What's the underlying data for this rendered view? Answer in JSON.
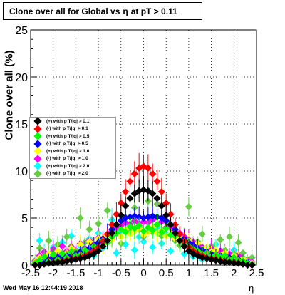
{
  "title": {
    "text": "Clone  over all for Global vs",
    "eta_symbol": "η",
    "suffix": "at pT > 0.11"
  },
  "ylabel": "Clone  over all (%)",
  "xlabel": "η",
  "timestamp": "Wed May 16 12:44:19 2018",
  "legend": [
    {
      "label": "(+) with p T/|q| > 0.1",
      "color": "#000000"
    },
    {
      "label": "(-) with p T/|q| > 0.1",
      "color": "#ff0000"
    },
    {
      "label": "(+) with p T/|q| > 0.5",
      "color": "#00ff00"
    },
    {
      "label": "(-) with p T/|q| > 0.5",
      "color": "#0000ff"
    },
    {
      "label": "(+) with p T/|q| > 1.0",
      "color": "#ffff00"
    },
    {
      "label": "(-) with p T/|q| > 1.0",
      "color": "#ff00ff"
    },
    {
      "label": "(+) with p T/|q| > 2.0",
      "color": "#00ffff"
    },
    {
      "label": "(-) with p T/|q| > 2.0",
      "color": "#66cc44"
    }
  ],
  "chart_data": {
    "type": "scatter",
    "title": "Clone  over all for Global vs η at pT > 0.11",
    "xlabel": "η",
    "ylabel": "Clone  over all (%)",
    "xlim": [
      -2.5,
      2.5
    ],
    "ylim": [
      0,
      25
    ],
    "xticks": [
      "-2.5",
      "-2",
      "-1.5",
      "-1",
      "-0.5",
      "0",
      "0.5",
      "1",
      "1.5",
      "2",
      "2.5"
    ],
    "yticks": [
      "0",
      "5",
      "10",
      "15",
      "20",
      "25"
    ],
    "grid": true,
    "legend_position": "middle-left",
    "x": [
      -2.4,
      -2.3,
      -2.2,
      -2.1,
      -2.0,
      -1.9,
      -1.8,
      -1.7,
      -1.6,
      -1.5,
      -1.4,
      -1.3,
      -1.2,
      -1.1,
      -1.0,
      -0.9,
      -0.8,
      -0.7,
      -0.6,
      -0.5,
      -0.4,
      -0.3,
      -0.2,
      -0.1,
      0.0,
      0.1,
      0.2,
      0.3,
      0.4,
      0.5,
      0.6,
      0.7,
      0.8,
      0.9,
      1.0,
      1.1,
      1.2,
      1.3,
      1.4,
      1.5,
      1.6,
      1.7,
      1.8,
      1.9,
      2.0,
      2.1,
      2.2,
      2.3,
      2.4
    ],
    "series": [
      {
        "name": "(+) with p T/|q| > 0.1",
        "color": "#000000",
        "values": [
          0,
          0,
          0.1,
          0.2,
          0.2,
          0.3,
          0.3,
          0.4,
          0.5,
          0.6,
          0.7,
          0.8,
          1.0,
          1.2,
          1.5,
          2.0,
          2.6,
          3.4,
          4.3,
          5.3,
          6.3,
          7.1,
          7.6,
          7.9,
          8.0,
          7.9,
          7.6,
          7.1,
          6.3,
          5.3,
          4.3,
          3.4,
          2.6,
          2.0,
          1.5,
          1.2,
          1.0,
          0.8,
          0.7,
          0.6,
          0.5,
          0.4,
          0.3,
          0.3,
          0.2,
          0.2,
          0.1,
          0,
          0
        ]
      },
      {
        "name": "(-) with p T/|q| > 0.1",
        "color": "#ff0000",
        "values": [
          0,
          0,
          0.1,
          0.2,
          0.3,
          0.3,
          0.4,
          0.5,
          0.6,
          0.7,
          0.8,
          1.0,
          1.2,
          1.5,
          1.9,
          2.5,
          3.3,
          4.3,
          5.4,
          6.6,
          7.8,
          8.9,
          9.7,
          10.3,
          10.5,
          10.3,
          9.7,
          8.9,
          7.8,
          6.6,
          5.4,
          4.3,
          3.3,
          2.5,
          1.9,
          1.5,
          1.2,
          1.0,
          0.8,
          0.7,
          0.6,
          0.5,
          0.4,
          0.3,
          0.3,
          0.2,
          0.1,
          0,
          0
        ]
      },
      {
        "name": "(+) with p T/|q| > 0.5",
        "color": "#00ff00",
        "values": [
          0.2,
          0.5,
          0.9,
          0.4,
          1.1,
          0.6,
          1.2,
          0.8,
          1.4,
          1.0,
          1.1,
          1.6,
          1.3,
          2.0,
          1.8,
          2.6,
          2.4,
          3.0,
          3.4,
          3.8,
          3.5,
          4.1,
          3.9,
          4.2,
          3.6,
          4.0,
          3.7,
          4.3,
          3.5,
          3.9,
          3.2,
          3.1,
          2.6,
          2.4,
          2.0,
          1.7,
          1.5,
          1.2,
          1.3,
          0.9,
          1.1,
          0.8,
          1.0,
          0.6,
          0.8,
          0.5,
          0.4,
          0.2,
          0.1
        ]
      },
      {
        "name": "(-) with p T/|q| > 0.5",
        "color": "#0000ff",
        "values": [
          0.1,
          0.3,
          0.4,
          0.6,
          0.7,
          0.8,
          0.9,
          1.0,
          1.1,
          1.2,
          1.4,
          1.6,
          1.8,
          2.1,
          2.4,
          2.8,
          3.3,
          3.8,
          4.3,
          4.7,
          5.0,
          5.1,
          5.2,
          5.1,
          5.0,
          5.1,
          5.2,
          5.1,
          5.0,
          4.7,
          4.3,
          3.8,
          3.3,
          2.8,
          2.4,
          2.1,
          1.8,
          1.6,
          1.4,
          1.2,
          1.1,
          1.0,
          0.9,
          0.8,
          0.7,
          0.6,
          0.4,
          0.3,
          0.1
        ]
      },
      {
        "name": "(+) with p T/|q| > 1.0",
        "color": "#ffff00",
        "values": [
          0.3,
          0.8,
          0.5,
          1.2,
          0.7,
          1.5,
          0.9,
          1.3,
          1.8,
          1.1,
          2.2,
          1.6,
          2.5,
          1.9,
          2.8,
          2.2,
          3.1,
          2.7,
          3.4,
          3.0,
          3.8,
          3.3,
          3.6,
          3.9,
          3.2,
          3.5,
          4.0,
          3.4,
          3.7,
          3.1,
          3.3,
          2.8,
          3.0,
          2.4,
          2.6,
          2.0,
          2.3,
          1.7,
          1.9,
          1.4,
          1.6,
          1.1,
          1.3,
          0.8,
          1.0,
          0.6,
          0.7,
          0.4,
          0.2
        ]
      },
      {
        "name": "(-) with p T/|q| > 1.0",
        "color": "#ff00ff",
        "values": [
          0.4,
          1.0,
          1.4,
          0.9,
          1.7,
          1.2,
          2.0,
          1.5,
          1.9,
          1.3,
          2.3,
          1.8,
          2.6,
          2.2,
          2.9,
          2.5,
          3.3,
          3.6,
          3.9,
          4.2,
          4.5,
          4.3,
          4.7,
          4.4,
          4.6,
          4.5,
          4.8,
          4.3,
          4.6,
          4.0,
          4.1,
          3.6,
          3.4,
          3.0,
          2.7,
          2.4,
          2.1,
          1.9,
          1.6,
          1.8,
          1.3,
          1.5,
          1.1,
          1.2,
          0.9,
          1.0,
          0.6,
          0.5,
          0.3
        ]
      },
      {
        "name": "(-) with p T/|q| > 2.0",
        "color": "#66cc44",
        "values": [
          0.5,
          1.8,
          0.9,
          2.6,
          1.5,
          2.2,
          1.1,
          3.0,
          2.0,
          1.6,
          5.0,
          2.4,
          3.8,
          1.9,
          4.4,
          2.8,
          5.8,
          3.2,
          4.1,
          2.3,
          5.1,
          3.6,
          6.1,
          4.0,
          3.0,
          6.8,
          3.5,
          6.5,
          3.1,
          4.6,
          3.9,
          2.6,
          2.1,
          2.9,
          6.2,
          1.8,
          2.5,
          3.3,
          1.4,
          2.0,
          1.0,
          2.7,
          1.6,
          3.0,
          1.2,
          2.4,
          1.3,
          0.6,
          0.8
        ]
      },
      {
        "name": "(+) with p T/|q| > 2.0",
        "color": "#00ffff",
        "values": [
          0.2,
          2.6,
          1.4,
          0.8,
          1.9,
          0.5,
          2.4,
          1.2,
          3.1,
          0.7,
          2.0,
          1.5,
          2.8,
          1.0,
          3.4,
          1.8,
          2.6,
          4.8,
          1.3,
          3.7,
          2.2,
          4.4,
          1.6,
          3.0,
          2.5,
          3.6,
          1.9,
          4.0,
          2.3,
          3.3,
          1.5,
          2.6,
          2.8,
          1.2,
          2.1,
          0.9,
          1.7,
          0.6,
          1.4,
          1.0,
          2.2,
          0.7,
          1.1,
          0.4,
          1.6,
          0.3,
          0.8,
          0.2,
          0.1
        ]
      }
    ]
  }
}
